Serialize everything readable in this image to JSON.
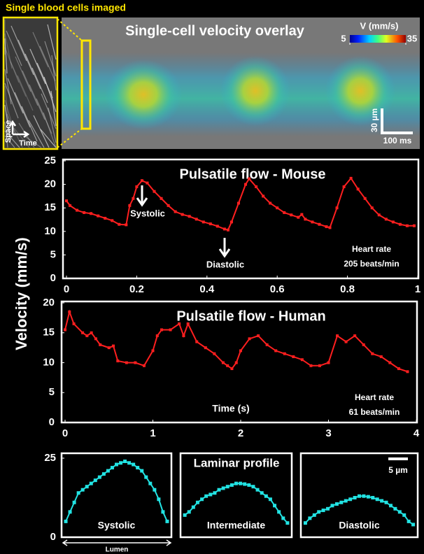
{
  "chart_data": [
    {
      "type": "heatmap",
      "title": "Single-cell velocity overlay",
      "inset_label": "Single blood cells imaged",
      "inset_axes": {
        "y": "Space",
        "x": "Time"
      },
      "colorbar_label": "V (mm/s)",
      "clim": [
        5,
        35
      ],
      "cticks": [
        5,
        35
      ],
      "scale_bars": [
        "30 µm",
        "100 ms"
      ]
    },
    {
      "type": "line",
      "title": "Pulsatile flow - Mouse",
      "color": "#ff1f1f",
      "x": [
        0,
        0.01,
        0.03,
        0.05,
        0.07,
        0.09,
        0.11,
        0.13,
        0.15,
        0.17,
        0.18,
        0.19,
        0.2,
        0.215,
        0.23,
        0.25,
        0.27,
        0.29,
        0.31,
        0.33,
        0.35,
        0.37,
        0.39,
        0.41,
        0.43,
        0.45,
        0.46,
        0.47,
        0.49,
        0.51,
        0.52,
        0.54,
        0.56,
        0.58,
        0.6,
        0.62,
        0.64,
        0.66,
        0.67,
        0.68,
        0.7,
        0.72,
        0.74,
        0.75,
        0.77,
        0.79,
        0.81,
        0.83,
        0.85,
        0.87,
        0.89,
        0.91,
        0.93,
        0.95,
        0.97,
        0.99
      ],
      "values": [
        16.5,
        15.5,
        14.5,
        14,
        13.8,
        13.3,
        12.8,
        12.3,
        11.5,
        11.4,
        15.5,
        17,
        19.5,
        20.8,
        20.3,
        18.5,
        17,
        15.5,
        14.2,
        13.6,
        13.2,
        12.6,
        12,
        11.6,
        11.1,
        10.5,
        10.3,
        12,
        16,
        20,
        21.2,
        19.5,
        17.5,
        16,
        15,
        14,
        13.5,
        13,
        13.6,
        12.6,
        12,
        11.5,
        11,
        10.8,
        15,
        19.5,
        21.3,
        19,
        17,
        15,
        13.5,
        12.6,
        12,
        11.5,
        11.2,
        11.2
      ],
      "xlim": [
        0,
        1
      ],
      "xticks": [
        0,
        0.2,
        0.4,
        0.6,
        0.8,
        1
      ],
      "ylim": [
        0,
        25
      ],
      "yticks": [
        0,
        5,
        10,
        15,
        20,
        25
      ],
      "annotations": [
        "Systolic",
        "Diastolic"
      ],
      "note": [
        "Heart rate",
        "205 beats/min"
      ]
    },
    {
      "type": "line",
      "title": "Pulsatile flow - Human",
      "color": "#ff1f1f",
      "xlabel": "Time (s)",
      "x": [
        0,
        0.05,
        0.1,
        0.2,
        0.25,
        0.3,
        0.35,
        0.4,
        0.5,
        0.55,
        0.6,
        0.7,
        0.8,
        0.9,
        1.0,
        1.05,
        1.1,
        1.2,
        1.3,
        1.35,
        1.4,
        1.5,
        1.6,
        1.7,
        1.8,
        1.85,
        1.9,
        1.95,
        2.0,
        2.1,
        2.2,
        2.3,
        2.4,
        2.5,
        2.6,
        2.7,
        2.8,
        2.9,
        3.0,
        3.1,
        3.2,
        3.3,
        3.4,
        3.5,
        3.6,
        3.7,
        3.8,
        3.9
      ],
      "values": [
        15.5,
        18.5,
        16.5,
        15,
        14.5,
        15,
        14,
        13,
        12.5,
        12.8,
        10.3,
        10,
        10,
        9.5,
        12,
        14.5,
        15.5,
        15.5,
        16.5,
        14.5,
        16.5,
        13.5,
        12.5,
        11.5,
        10,
        9.5,
        9,
        10,
        12,
        14,
        14.5,
        13,
        12,
        11.5,
        11,
        10.5,
        9.5,
        9.5,
        10,
        14.5,
        13.5,
        14.5,
        13,
        11.5,
        11,
        10,
        9,
        8.5
      ],
      "xlim": [
        0,
        4
      ],
      "xticks": [
        0,
        1,
        2,
        3,
        4
      ],
      "ylim": [
        0,
        20
      ],
      "yticks": [
        0,
        5,
        10,
        15,
        20
      ],
      "note": [
        "Heart rate",
        "61 beats/min"
      ]
    },
    {
      "type": "profile",
      "title": "Laminar profile",
      "xlabel": "Lumen",
      "scale_bar": "5 µm",
      "x": [
        0,
        1,
        2,
        3,
        4,
        5,
        6,
        7,
        8,
        9,
        10,
        11,
        12,
        13,
        14,
        15,
        16,
        17,
        18,
        19,
        20,
        21,
        22,
        23,
        24
      ],
      "xlim": [
        -1,
        25
      ],
      "ylim": [
        0,
        25
      ],
      "yticks": [
        0,
        25
      ],
      "series": [
        {
          "name": "Systolic",
          "color": "#22e3e3",
          "values": [
            5,
            8,
            11,
            14,
            15,
            16,
            17,
            18,
            19,
            20,
            21,
            22,
            23,
            23.5,
            24,
            23.5,
            23,
            22,
            21,
            19,
            17,
            15,
            12,
            8,
            5
          ]
        },
        {
          "name": "Intermediate",
          "color": "#22e3e3",
          "values": [
            7,
            8,
            9.5,
            11,
            12,
            13,
            13.5,
            14,
            15,
            15.5,
            16,
            16.5,
            17,
            17,
            16.8,
            16.5,
            16,
            15,
            14,
            13,
            12,
            10,
            8,
            6,
            4.5
          ]
        },
        {
          "name": "Diastolic",
          "color": "#22e3e3",
          "values": [
            4.5,
            6,
            7,
            8,
            8.5,
            9,
            10,
            10.5,
            11,
            11.5,
            12,
            12.5,
            13,
            13,
            12.8,
            12.5,
            12,
            11.5,
            11,
            10,
            9,
            8,
            7,
            5,
            4
          ]
        }
      ]
    }
  ],
  "ylabel": "Velocity (mm/s)"
}
